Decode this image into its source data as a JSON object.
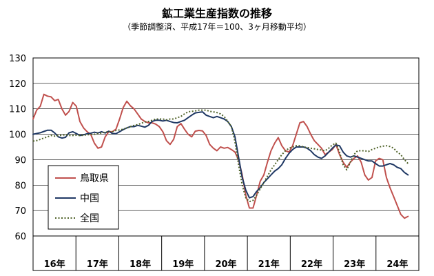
{
  "chart_data": {
    "type": "line",
    "title": "鉱工業生産指数の推移",
    "subtitle": "（季節調整済、平成17年＝100、3ヶ月移動平均）",
    "ylim": [
      60,
      130
    ],
    "yticks": [
      "60",
      "70",
      "80",
      "90",
      "100",
      "110",
      "120",
      "130"
    ],
    "xlim": [
      0,
      107
    ],
    "categories": [
      "16年",
      "17年",
      "18年",
      "19年",
      "20年",
      "21年",
      "22年",
      "23年",
      "24年"
    ],
    "grid": true,
    "legend_position": "bottom-left",
    "series": [
      {
        "name": "鳥取県",
        "color": "#c0504d",
        "style": "solid",
        "points": [
          [
            0,
            106
          ],
          [
            1,
            109.5
          ],
          [
            2,
            111
          ],
          [
            3,
            115.7
          ],
          [
            4,
            115
          ],
          [
            5,
            114.7
          ],
          [
            6,
            113.2
          ],
          [
            7,
            113.7
          ],
          [
            8,
            110
          ],
          [
            9,
            107.5
          ],
          [
            10,
            109
          ],
          [
            11,
            112.5
          ],
          [
            12,
            111
          ],
          [
            13,
            105
          ],
          [
            14,
            102.5
          ],
          [
            15,
            101
          ],
          [
            16,
            100
          ],
          [
            17,
            96.5
          ],
          [
            18,
            94.5
          ],
          [
            19,
            95
          ],
          [
            20,
            99
          ],
          [
            21,
            101
          ],
          [
            22,
            101
          ],
          [
            23,
            102
          ],
          [
            24,
            106
          ],
          [
            25,
            110.5
          ],
          [
            26,
            113
          ],
          [
            27,
            111.2
          ],
          [
            28,
            110
          ],
          [
            29,
            108
          ],
          [
            30,
            106
          ],
          [
            31,
            105
          ],
          [
            32,
            104.5
          ],
          [
            33,
            104.5
          ],
          [
            34,
            104
          ],
          [
            35,
            103
          ],
          [
            36,
            101
          ],
          [
            37,
            97.5
          ],
          [
            38,
            96
          ],
          [
            39,
            98
          ],
          [
            40,
            103
          ],
          [
            41,
            104.2
          ],
          [
            42,
            102
          ],
          [
            43,
            100
          ],
          [
            44,
            99
          ],
          [
            45,
            101.2
          ],
          [
            46,
            101.5
          ],
          [
            47,
            101.3
          ],
          [
            48,
            99.5
          ],
          [
            49,
            96
          ],
          [
            50,
            94.5
          ],
          [
            51,
            93.5
          ],
          [
            52,
            95
          ],
          [
            53,
            94.5
          ],
          [
            54,
            94.8
          ],
          [
            55,
            94
          ],
          [
            56,
            93
          ],
          [
            57,
            90
          ],
          [
            58,
            84
          ],
          [
            59,
            76
          ],
          [
            60,
            71
          ],
          [
            61,
            71
          ],
          [
            62,
            76
          ],
          [
            63,
            81.5
          ],
          [
            64,
            84
          ],
          [
            65,
            89
          ],
          [
            66,
            93.5
          ],
          [
            67,
            96.5
          ],
          [
            68,
            98.7
          ],
          [
            69,
            95.5
          ],
          [
            70,
            93.5
          ],
          [
            71,
            93
          ],
          [
            72,
            95.5
          ],
          [
            73,
            100
          ],
          [
            74,
            104.5
          ],
          [
            75,
            105
          ],
          [
            76,
            103
          ],
          [
            77,
            100
          ],
          [
            78,
            97.5
          ],
          [
            79,
            96
          ],
          [
            80,
            94.5
          ],
          [
            81,
            92
          ],
          [
            82,
            93
          ],
          [
            83,
            94
          ],
          [
            84,
            96
          ],
          [
            85,
            92
          ],
          [
            86,
            89
          ],
          [
            87,
            87
          ],
          [
            88,
            89
          ],
          [
            89,
            90.5
          ],
          [
            90,
            91.5
          ],
          [
            91,
            89
          ],
          [
            92,
            84
          ],
          [
            93,
            82
          ],
          [
            94,
            83
          ],
          [
            95,
            89.5
          ],
          [
            96,
            90.5
          ],
          [
            97,
            90
          ],
          [
            98,
            83
          ],
          [
            99,
            79
          ],
          [
            100,
            75.5
          ],
          [
            101,
            72
          ],
          [
            102,
            68.5
          ],
          [
            103,
            67
          ],
          [
            104,
            67.7
          ]
        ]
      },
      {
        "name": "中国",
        "color": "#1f3864",
        "style": "solid",
        "points": [
          [
            0,
            100
          ],
          [
            1,
            100.3
          ],
          [
            2,
            100.6
          ],
          [
            3,
            101.1
          ],
          [
            4,
            101.6
          ],
          [
            5,
            101.6
          ],
          [
            6,
            100.5
          ],
          [
            7,
            99
          ],
          [
            8,
            98.5
          ],
          [
            9,
            98.8
          ],
          [
            10,
            100.6
          ],
          [
            11,
            101
          ],
          [
            12,
            100.3
          ],
          [
            13,
            99.5
          ],
          [
            14,
            99.8
          ],
          [
            15,
            100.2
          ],
          [
            16,
            100.4
          ],
          [
            17,
            100.8
          ],
          [
            18,
            100.5
          ],
          [
            19,
            101
          ],
          [
            20,
            100.5
          ],
          [
            21,
            101.2
          ],
          [
            22,
            100.3
          ],
          [
            23,
            100.2
          ],
          [
            24,
            101
          ],
          [
            25,
            101.8
          ],
          [
            26,
            102.5
          ],
          [
            27,
            103
          ],
          [
            28,
            103
          ],
          [
            29,
            103.5
          ],
          [
            30,
            103.2
          ],
          [
            31,
            102.8
          ],
          [
            32,
            103.5
          ],
          [
            33,
            105
          ],
          [
            34,
            105.5
          ],
          [
            35,
            105.5
          ],
          [
            36,
            105.2
          ],
          [
            37,
            105.5
          ],
          [
            38,
            105
          ],
          [
            39,
            104.6
          ],
          [
            40,
            104.5
          ],
          [
            41,
            105
          ],
          [
            42,
            105.5
          ],
          [
            43,
            106.5
          ],
          [
            44,
            107.5
          ],
          [
            45,
            108.4
          ],
          [
            46,
            108.6
          ],
          [
            47,
            108.8
          ],
          [
            48,
            107.5
          ],
          [
            49,
            107
          ],
          [
            50,
            106.5
          ],
          [
            51,
            107
          ],
          [
            52,
            106.5
          ],
          [
            53,
            106
          ],
          [
            54,
            105
          ],
          [
            55,
            103
          ],
          [
            56,
            99
          ],
          [
            57,
            91
          ],
          [
            58,
            83
          ],
          [
            59,
            78
          ],
          [
            60,
            75
          ],
          [
            61,
            75.5
          ],
          [
            62,
            77.5
          ],
          [
            63,
            79
          ],
          [
            64,
            81
          ],
          [
            65,
            82.5
          ],
          [
            66,
            84
          ],
          [
            67,
            85.5
          ],
          [
            68,
            86.5
          ],
          [
            69,
            88
          ],
          [
            70,
            90.5
          ],
          [
            71,
            92.5
          ],
          [
            72,
            94
          ],
          [
            73,
            95
          ],
          [
            74,
            95
          ],
          [
            75,
            95
          ],
          [
            76,
            94.5
          ],
          [
            77,
            93.5
          ],
          [
            78,
            92
          ],
          [
            79,
            91
          ],
          [
            80,
            90.5
          ],
          [
            81,
            91.5
          ],
          [
            82,
            93
          ],
          [
            83,
            94.5
          ],
          [
            84,
            95.8
          ],
          [
            85,
            95.5
          ],
          [
            86,
            93
          ],
          [
            87,
            91.5
          ],
          [
            88,
            91
          ],
          [
            89,
            91.5
          ],
          [
            90,
            91
          ],
          [
            91,
            90.5
          ],
          [
            92,
            90
          ],
          [
            93,
            89.5
          ],
          [
            94,
            89.5
          ],
          [
            95,
            88.5
          ],
          [
            96,
            87.5
          ],
          [
            97,
            87.5
          ],
          [
            98,
            88
          ],
          [
            99,
            88.5
          ],
          [
            100,
            88
          ],
          [
            101,
            87
          ],
          [
            102,
            86.5
          ],
          [
            103,
            85
          ],
          [
            104,
            84
          ]
        ]
      },
      {
        "name": "全国",
        "color": "#4f6228",
        "style": "dotted",
        "points": [
          [
            0,
            97.3
          ],
          [
            1,
            97.5
          ],
          [
            2,
            98
          ],
          [
            3,
            98.5
          ],
          [
            4,
            99
          ],
          [
            5,
            99.5
          ],
          [
            6,
            99.3
          ],
          [
            7,
            99.5
          ],
          [
            8,
            99.6
          ],
          [
            9,
            99.8
          ],
          [
            10,
            99.5
          ],
          [
            11,
            99.5
          ],
          [
            12,
            99.6
          ],
          [
            13,
            99.5
          ],
          [
            14,
            99.6
          ],
          [
            15,
            99.8
          ],
          [
            16,
            99.9
          ],
          [
            17,
            100
          ],
          [
            18,
            100.3
          ],
          [
            19,
            100.5
          ],
          [
            20,
            100.8
          ],
          [
            21,
            101
          ],
          [
            22,
            101
          ],
          [
            23,
            101.5
          ],
          [
            24,
            101.7
          ],
          [
            25,
            102
          ],
          [
            26,
            102.5
          ],
          [
            27,
            103
          ],
          [
            28,
            103.5
          ],
          [
            29,
            103.8
          ],
          [
            30,
            104.3
          ],
          [
            31,
            104.8
          ],
          [
            32,
            105
          ],
          [
            33,
            105.5
          ],
          [
            34,
            106
          ],
          [
            35,
            106
          ],
          [
            36,
            106
          ],
          [
            37,
            105.7
          ],
          [
            38,
            106
          ],
          [
            39,
            106
          ],
          [
            40,
            106.5
          ],
          [
            41,
            107
          ],
          [
            42,
            108
          ],
          [
            43,
            108.8
          ],
          [
            44,
            109
          ],
          [
            45,
            109.2
          ],
          [
            46,
            109.5
          ],
          [
            47,
            109.5
          ],
          [
            48,
            109.5
          ],
          [
            49,
            109
          ],
          [
            50,
            108.8
          ],
          [
            51,
            108.5
          ],
          [
            52,
            108
          ],
          [
            53,
            107
          ],
          [
            54,
            105
          ],
          [
            55,
            103
          ],
          [
            56,
            97
          ],
          [
            57,
            88
          ],
          [
            58,
            80
          ],
          [
            59,
            75
          ],
          [
            60,
            73.5
          ],
          [
            61,
            74
          ],
          [
            62,
            76
          ],
          [
            63,
            78.5
          ],
          [
            64,
            81
          ],
          [
            65,
            83.5
          ],
          [
            66,
            86
          ],
          [
            67,
            88
          ],
          [
            68,
            90
          ],
          [
            69,
            92
          ],
          [
            70,
            93.5
          ],
          [
            71,
            94.5
          ],
          [
            72,
            95
          ],
          [
            73,
            95.5
          ],
          [
            74,
            95.5
          ],
          [
            75,
            95
          ],
          [
            76,
            94.8
          ],
          [
            77,
            94.5
          ],
          [
            78,
            94.3
          ],
          [
            79,
            94
          ],
          [
            80,
            93.8
          ],
          [
            81,
            93.5
          ],
          [
            82,
            94.5
          ],
          [
            83,
            95.8
          ],
          [
            84,
            96.5
          ],
          [
            85,
            93
          ],
          [
            86,
            88
          ],
          [
            87,
            86
          ],
          [
            88,
            89
          ],
          [
            89,
            92
          ],
          [
            90,
            93.5
          ],
          [
            91,
            93.5
          ],
          [
            92,
            93.5
          ],
          [
            93,
            93.2
          ],
          [
            94,
            94
          ],
          [
            95,
            94.5
          ],
          [
            96,
            95
          ],
          [
            97,
            95.3
          ],
          [
            98,
            95.5
          ],
          [
            99,
            95.2
          ],
          [
            100,
            94.5
          ],
          [
            101,
            93
          ],
          [
            102,
            92
          ],
          [
            103,
            90
          ],
          [
            104,
            88.5
          ]
        ]
      }
    ]
  }
}
